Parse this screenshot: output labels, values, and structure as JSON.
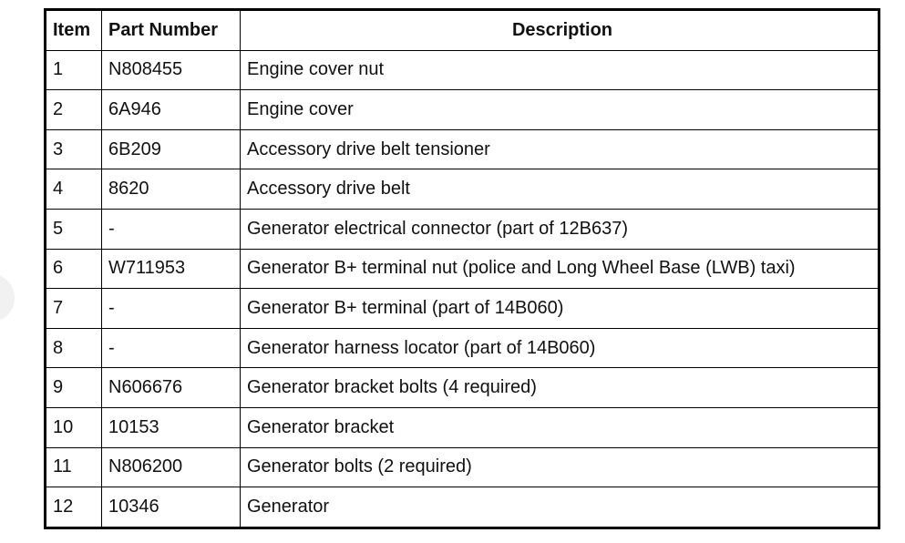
{
  "table": {
    "headers": [
      "Item",
      "Part Number",
      "Description"
    ],
    "rows": [
      [
        "1",
        "N808455",
        "Engine cover nut"
      ],
      [
        "2",
        "6A946",
        "Engine cover"
      ],
      [
        "3",
        "6B209",
        "Accessory drive belt tensioner"
      ],
      [
        "4",
        "8620",
        "Accessory drive belt"
      ],
      [
        "5",
        "-",
        "Generator electrical connector (part of 12B637)"
      ],
      [
        "6",
        "W711953",
        "Generator B+ terminal nut (police and Long Wheel Base (LWB) taxi)"
      ],
      [
        "7",
        "-",
        "Generator B+ terminal (part of 14B060)"
      ],
      [
        "8",
        "-",
        "Generator harness locator (part of 14B060)"
      ],
      [
        "9",
        "N606676",
        "Generator bracket bolts (4 required)"
      ],
      [
        "10",
        "10153",
        "Generator bracket"
      ],
      [
        "11",
        "N806200",
        "Generator bolts (2 required)"
      ],
      [
        "12",
        "10346",
        "Generator"
      ]
    ]
  }
}
